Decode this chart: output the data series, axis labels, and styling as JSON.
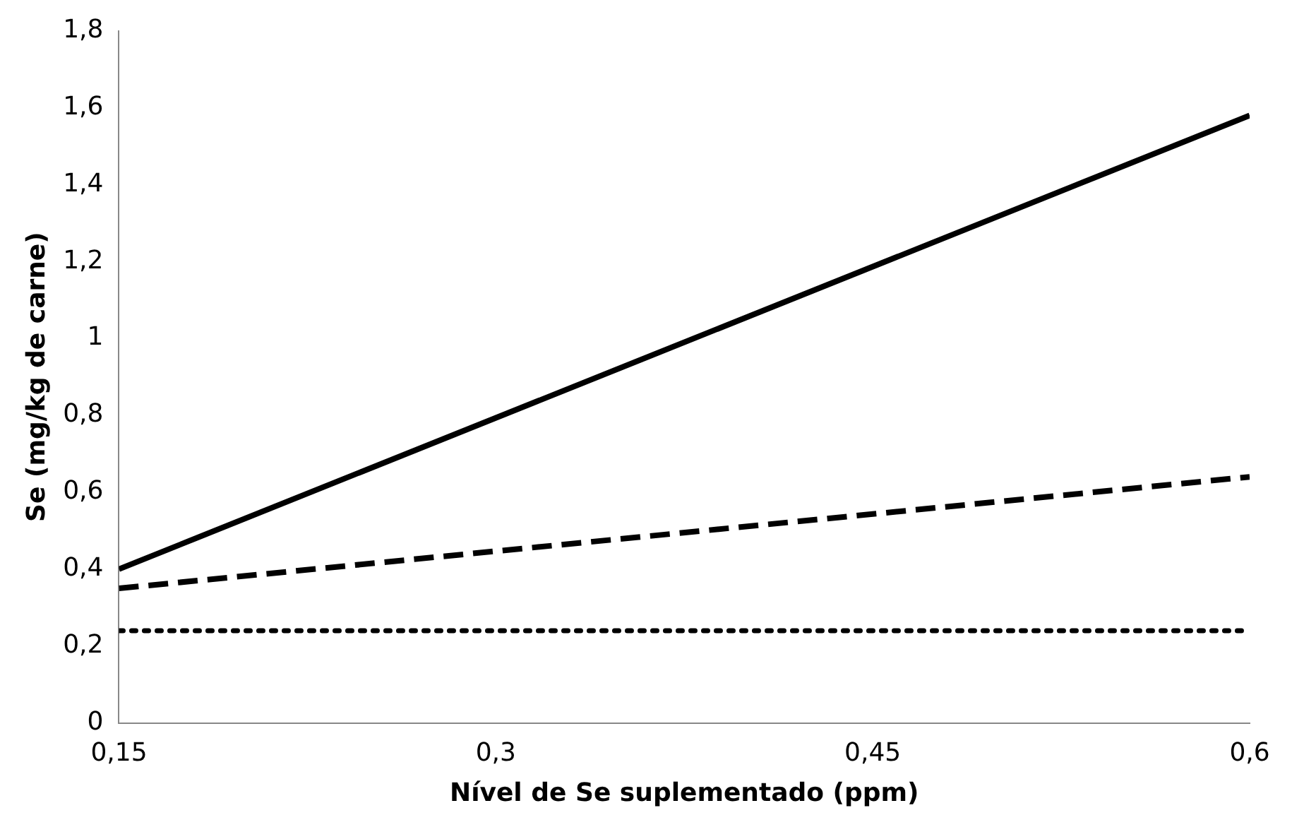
{
  "chart_data": {
    "type": "line",
    "xlabel": "Nível de Se suplementado (ppm)",
    "ylabel": "Se (mg/kg de carne)",
    "x": [
      0.15,
      0.6
    ],
    "series": [
      {
        "color": "#000000",
        "values": [
          0.4,
          1.58
        ],
        "line_style": "solid"
      },
      {
        "color": "#000000",
        "values": [
          0.35,
          0.64
        ],
        "line_style": "dashed"
      },
      {
        "color": "#000000",
        "values": [
          0.24,
          0.24
        ],
        "line_style": "dotted"
      }
    ],
    "xlim": [
      0.15,
      0.6
    ],
    "xticks": [
      {
        "value": 0.15,
        "label": "0,15"
      },
      {
        "value": 0.3,
        "label": "0,3"
      },
      {
        "value": 0.45,
        "label": "0,45"
      },
      {
        "value": 0.6,
        "label": "0,6"
      }
    ],
    "ylim": [
      0,
      1.8
    ],
    "yticks": [
      0,
      {
        "value": 0.2,
        "label": "0,2"
      },
      {
        "value": 0.4,
        "label": "0,4"
      },
      {
        "value": 0.6,
        "label": "0,6"
      },
      {
        "value": 0.8,
        "label": "0,8"
      },
      1,
      {
        "value": 1.2,
        "label": "1,2"
      },
      {
        "value": 1.4,
        "label": "1,4"
      },
      {
        "value": 1.6,
        "label": "1,6"
      },
      {
        "value": 1.8,
        "label": "1,8"
      }
    ],
    "grid": false,
    "legend": false,
    "marker": "none"
  }
}
